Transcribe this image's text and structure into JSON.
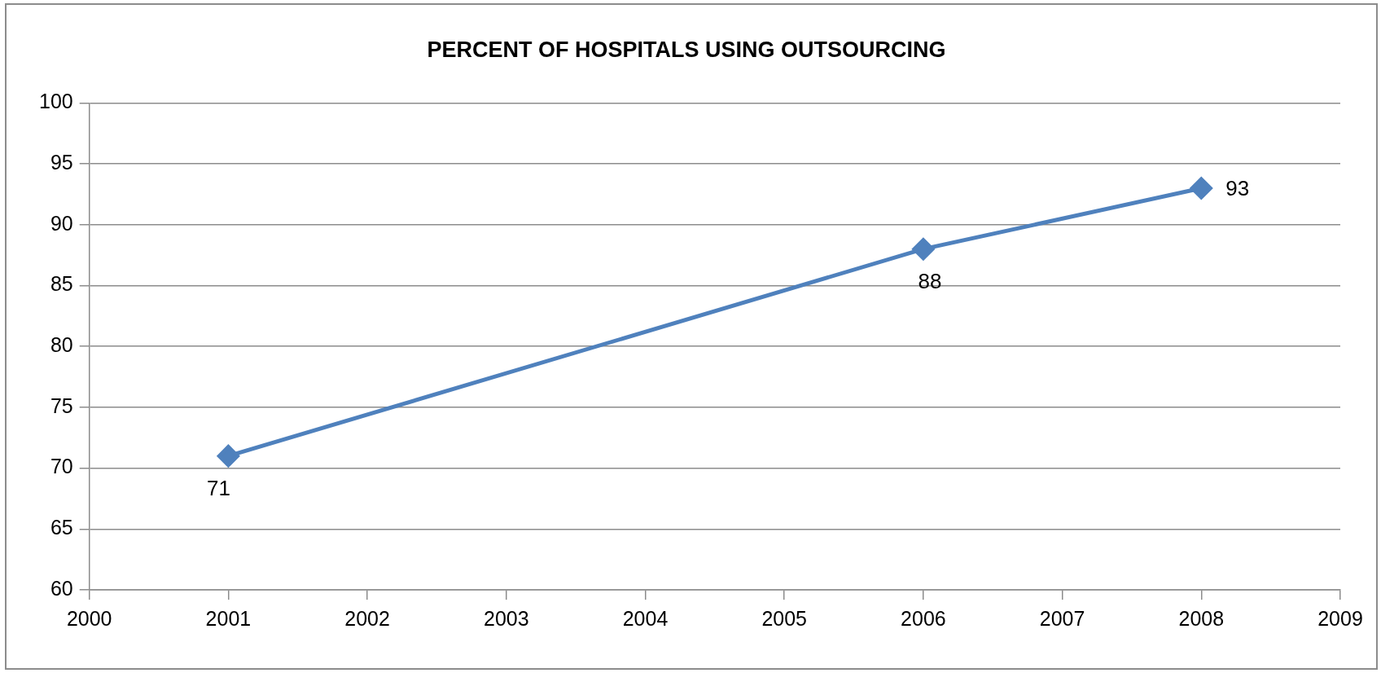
{
  "chart_data": {
    "type": "line",
    "title": "PERCENT OF HOSPITALS USING OUTSOURCING",
    "x": [
      2001,
      2006,
      2008
    ],
    "series": [
      {
        "color": "#4f81bd",
        "values": [
          71,
          88,
          93
        ]
      }
    ],
    "xlim": [
      2000,
      2009
    ],
    "xticks": [
      2000,
      2001,
      2002,
      2003,
      2004,
      2005,
      2006,
      2007,
      2008,
      2009
    ],
    "ylim": [
      60,
      100
    ],
    "yticks": [
      60,
      65,
      70,
      75,
      80,
      85,
      90,
      95,
      100
    ],
    "grid": "y",
    "legend": false,
    "marker": "diamond",
    "line_style": "solid",
    "data_labels": true
  }
}
